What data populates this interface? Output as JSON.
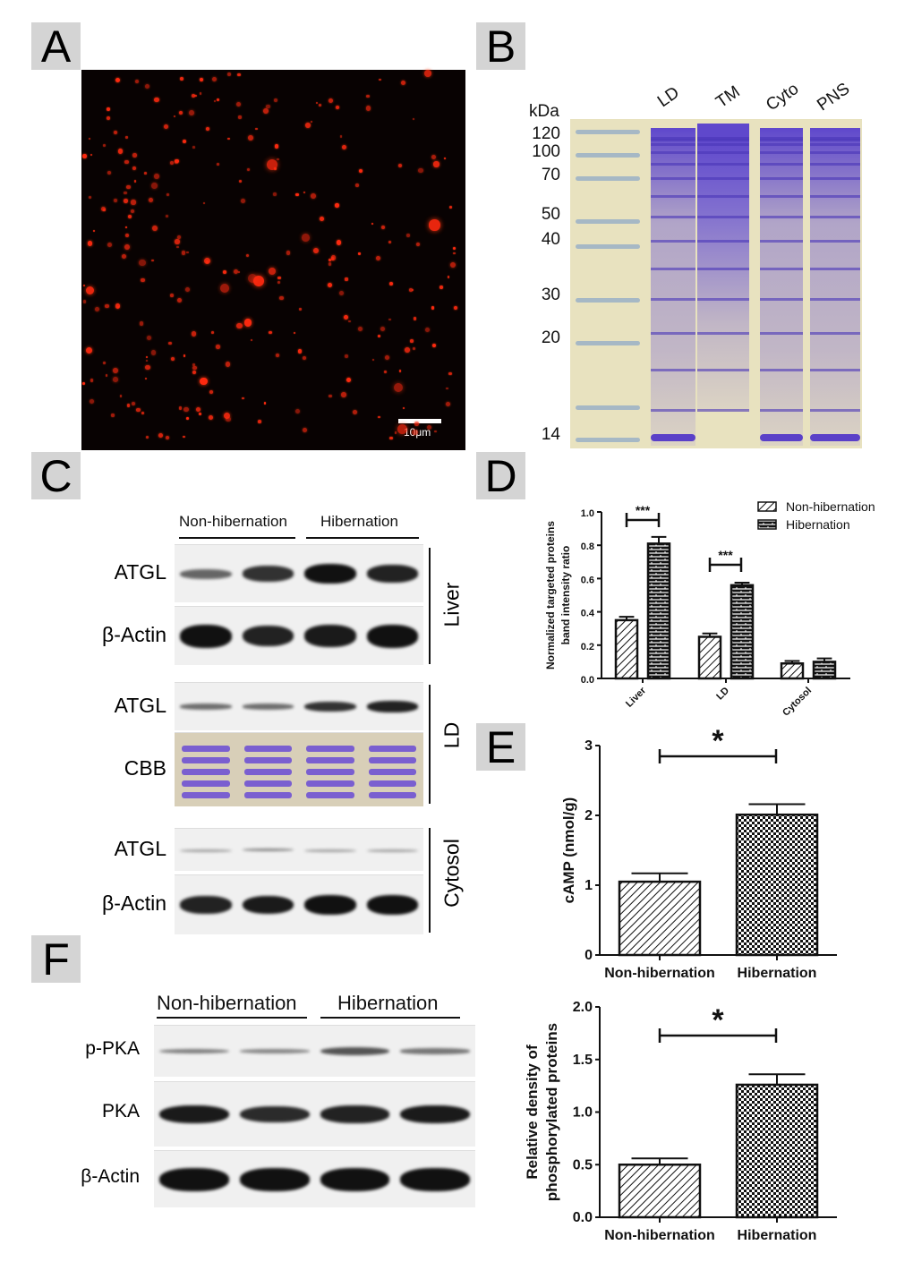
{
  "panels": {
    "a": "A",
    "b": "B",
    "c": "C",
    "d": "D",
    "e": "E",
    "f": "F"
  },
  "panel_a": {
    "scale_bar": "10μm"
  },
  "panel_b": {
    "unit": "kDa",
    "markers": [
      "120",
      "100",
      "70",
      "50",
      "40",
      "30",
      "20",
      "14"
    ],
    "lanes": [
      "LD",
      "TM",
      "Cyto",
      "PNS"
    ]
  },
  "panel_c": {
    "groups": [
      "Non-hibernation",
      "Hibernation"
    ],
    "rows": [
      "ATGL",
      "β-Actin",
      "ATGL",
      "CBB",
      "ATGL",
      "β-Actin"
    ],
    "sections": [
      "Liver",
      "LD",
      "Cytosol"
    ]
  },
  "panel_f": {
    "groups": [
      "Non-hibernation",
      "Hibernation"
    ],
    "rows": [
      "p-PKA",
      "PKA",
      "β-Actin"
    ]
  },
  "chart_data": [
    {
      "panel": "D",
      "type": "bar",
      "categories": [
        "Liver",
        "LD",
        "Cytosol"
      ],
      "series": [
        {
          "name": "Non-hibernation",
          "values": [
            0.35,
            0.25,
            0.09
          ],
          "errors": [
            0.02,
            0.02,
            0.015
          ],
          "pattern": "diagonal-hatch"
        },
        {
          "name": "Hibernation",
          "values": [
            0.81,
            0.56,
            0.1
          ],
          "errors": [
            0.04,
            0.015,
            0.02
          ],
          "pattern": "brick"
        }
      ],
      "ylabel": "Normalized targeted proteins band intensity ratio",
      "ylabel_lines": [
        "Normalized targeted proteins",
        "band intensity ratio"
      ],
      "ylim": [
        0,
        1.0
      ],
      "yticks": [
        "0.0",
        "0.2",
        "0.4",
        "0.6",
        "0.8",
        "1.0"
      ],
      "significance": [
        {
          "category": "Liver",
          "label": "***"
        },
        {
          "category": "LD",
          "label": "***"
        }
      ],
      "legend": "top-right"
    },
    {
      "panel": "E",
      "type": "bar",
      "categories": [
        "Non-hibernation",
        "Hibernation"
      ],
      "values": [
        1.05,
        2.01
      ],
      "errors": [
        0.12,
        0.15
      ],
      "patterns": [
        "diagonal-hatch",
        "checker"
      ],
      "ylabel": "cAMP (nmol/g)",
      "ylim": [
        0,
        3
      ],
      "yticks": [
        "0",
        "1",
        "2",
        "3"
      ],
      "significance": "*"
    },
    {
      "panel": "F",
      "type": "bar",
      "categories": [
        "Non-hibernation",
        "Hibernation"
      ],
      "values": [
        0.5,
        1.26
      ],
      "errors": [
        0.06,
        0.1
      ],
      "patterns": [
        "diagonal-hatch",
        "checker"
      ],
      "ylabel": "Relative density of phosphorylated proteins",
      "ylabel_lines": [
        "Relative density of",
        "phosphorylated proteins"
      ],
      "ylim": [
        0,
        2.0
      ],
      "yticks": [
        "0.0",
        "0.5",
        "1.0",
        "1.5",
        "2.0"
      ],
      "significance": "*"
    }
  ],
  "colors": {
    "droplet": "#ff2a10",
    "gel_bg": "#e8e2bf",
    "coomassie": "#6a4fd0",
    "blot_band": "#111111"
  }
}
